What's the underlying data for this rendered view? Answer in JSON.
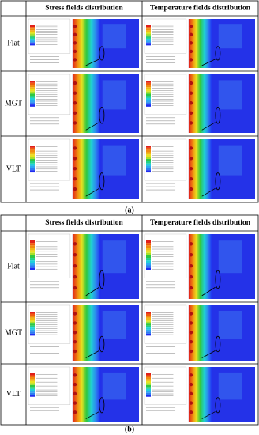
{
  "panels": [
    {
      "label": "(a)",
      "header": {
        "stress": "Stress fields distribution",
        "temperature": "Temperature fields distribution"
      },
      "rows": [
        "Flat",
        "MGT",
        "VLT"
      ]
    },
    {
      "label": "(b)",
      "header": {
        "stress": "Stress fields distribution",
        "temperature": "Temperature fields distribution"
      },
      "rows": [
        "Flat",
        "MGT",
        "VLT"
      ]
    }
  ]
}
